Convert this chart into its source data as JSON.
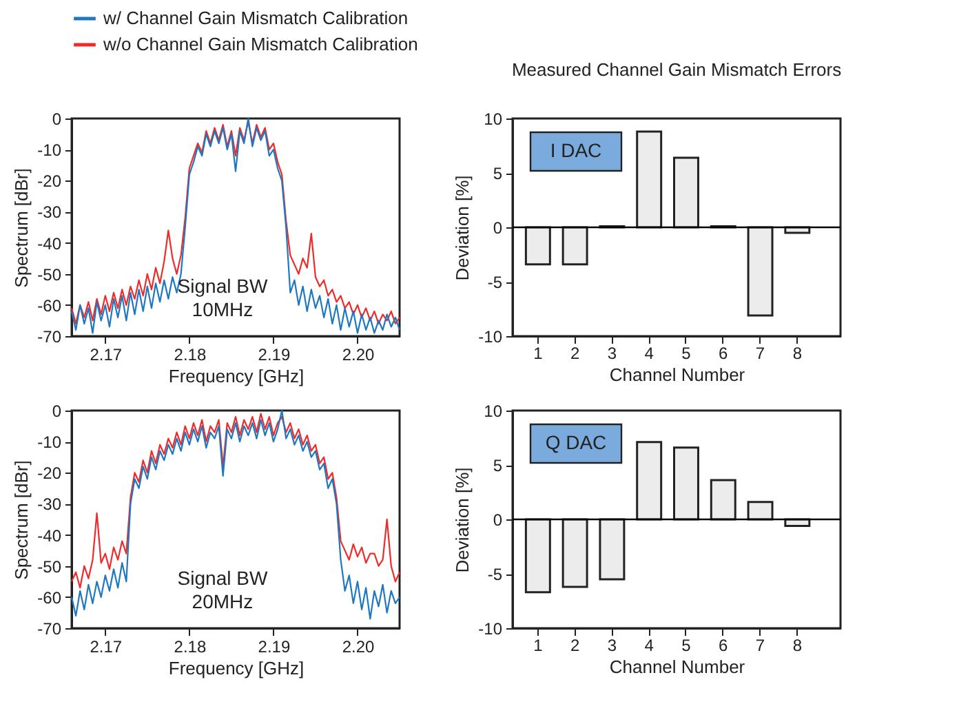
{
  "chart_data": [
    {
      "type": "line",
      "xlabel": "Frequency [GHz]",
      "ylabel": "Spectrum [dBr]",
      "xlim": [
        2.166,
        2.205
      ],
      "ylim": [
        -70,
        0
      ],
      "xticks": [
        2.17,
        2.18,
        2.19,
        {
          "value": 2.2,
          "label": "2.20"
        }
      ],
      "yticks": [
        -70,
        -60,
        -50,
        -40,
        -30,
        -20,
        -10,
        0
      ],
      "legend": "top",
      "annotations": [
        "Signal BW\n10MHz"
      ],
      "x": [
        2.166,
        2.1665,
        2.167,
        2.1675,
        2.168,
        2.1685,
        2.169,
        2.1695,
        2.17,
        2.1705,
        2.171,
        2.1715,
        2.172,
        2.1725,
        2.173,
        2.1735,
        2.174,
        2.1745,
        2.175,
        2.1755,
        2.176,
        2.1765,
        2.177,
        2.1775,
        2.178,
        2.1785,
        2.179,
        2.1795,
        2.18,
        2.1805,
        2.181,
        2.1815,
        2.182,
        2.1825,
        2.183,
        2.1835,
        2.184,
        2.1845,
        2.185,
        2.1855,
        2.186,
        2.1865,
        2.187,
        2.1875,
        2.188,
        2.1885,
        2.189,
        2.1895,
        2.19,
        2.1905,
        2.191,
        2.1915,
        2.192,
        2.1925,
        2.193,
        2.1935,
        2.194,
        2.1945,
        2.195,
        2.1955,
        2.196,
        2.1965,
        2.197,
        2.1975,
        2.198,
        2.1985,
        2.199,
        2.1995,
        2.2,
        2.2005,
        2.201,
        2.2015,
        2.202,
        2.2025,
        2.203,
        2.2035,
        2.204,
        2.2045,
        2.205
      ],
      "series": [
        {
          "name": "w/ Channel Gain Mismatch Calibration",
          "color": "#1f77c0",
          "values": [
            -62,
            -68,
            -60,
            -66,
            -61,
            -69,
            -59,
            -65,
            -60,
            -67,
            -58,
            -64,
            -57,
            -65,
            -56,
            -63,
            -55,
            -62,
            -54,
            -61,
            -53,
            -59,
            -52,
            -58,
            -51,
            -56,
            -50,
            -35,
            -18,
            -14,
            -9,
            -12,
            -5,
            -9,
            -4,
            -8,
            -3,
            -10,
            -5,
            -17,
            -4,
            -8,
            0,
            -9,
            -3,
            -7,
            -4,
            -12,
            -10,
            -16,
            -20,
            -35,
            -56,
            -52,
            -60,
            -54,
            -62,
            -55,
            -61,
            -57,
            -64,
            -58,
            -66,
            -60,
            -68,
            -61,
            -67,
            -62,
            -69,
            -63,
            -68,
            -64,
            -69,
            -65,
            -68,
            -63,
            -67,
            -64,
            -68
          ]
        },
        {
          "name": "w/o Channel Gain Mismatch Calibration",
          "color": "#ee2a2a",
          "values": [
            -61,
            -66,
            -60,
            -64,
            -59,
            -65,
            -58,
            -63,
            -57,
            -62,
            -56,
            -61,
            -55,
            -60,
            -54,
            -58,
            -52,
            -57,
            -50,
            -55,
            -48,
            -53,
            -46,
            -36,
            -45,
            -50,
            -44,
            -32,
            -16,
            -12,
            -8,
            -11,
            -4,
            -8,
            -3,
            -7,
            -2,
            -9,
            -4,
            -12,
            -3,
            -7,
            -1,
            -8,
            -2,
            -6,
            -3,
            -10,
            -8,
            -14,
            -18,
            -33,
            -44,
            -47,
            -50,
            -45,
            -48,
            -37,
            -51,
            -54,
            -52,
            -57,
            -55,
            -59,
            -57,
            -61,
            -59,
            -63,
            -60,
            -64,
            -61,
            -65,
            -62,
            -66,
            -63,
            -65,
            -62,
            -66,
            -64
          ]
        }
      ]
    },
    {
      "type": "bar",
      "title": "Measured Channel Gain Mismatch Errors",
      "xlabel": "Channel Number",
      "ylabel": "Deviation [%]",
      "categories": [
        "1",
        "2",
        "3",
        "4",
        "5",
        "6",
        "7",
        "8"
      ],
      "ylim": [
        -10,
        10
      ],
      "yticks": [
        -10,
        -5,
        0,
        5,
        10
      ],
      "annotations": [
        "I DAC"
      ],
      "ref_lines": [
        {
          "axis": "y",
          "value": 0,
          "color": "#000000"
        }
      ],
      "series": [
        {
          "color": "#ececec",
          "values": [
            -3.4,
            -3.4,
            0.1,
            8.8,
            6.4,
            0.1,
            -8.1,
            -0.5
          ]
        }
      ]
    },
    {
      "type": "line",
      "xlabel": "Frequency [GHz]",
      "ylabel": "Spectrum [dBr]",
      "xlim": [
        2.166,
        2.205
      ],
      "ylim": [
        -70,
        0
      ],
      "xticks": [
        2.17,
        2.18,
        2.19,
        {
          "value": 2.2,
          "label": "2.20"
        }
      ],
      "yticks": [
        -70,
        -60,
        -50,
        -40,
        -30,
        -20,
        -10,
        0
      ],
      "annotations": [
        "Signal BW\n20MHz"
      ],
      "x": [
        2.166,
        2.1665,
        2.167,
        2.1675,
        2.168,
        2.1685,
        2.169,
        2.1695,
        2.17,
        2.1705,
        2.171,
        2.1715,
        2.172,
        2.1725,
        2.173,
        2.1735,
        2.174,
        2.1745,
        2.175,
        2.1755,
        2.176,
        2.1765,
        2.177,
        2.1775,
        2.178,
        2.1785,
        2.179,
        2.1795,
        2.18,
        2.1805,
        2.181,
        2.1815,
        2.182,
        2.1825,
        2.183,
        2.1835,
        2.184,
        2.1845,
        2.185,
        2.1855,
        2.186,
        2.1865,
        2.187,
        2.1875,
        2.188,
        2.1885,
        2.189,
        2.1895,
        2.19,
        2.1905,
        2.191,
        2.1915,
        2.192,
        2.1925,
        2.193,
        2.1935,
        2.194,
        2.1945,
        2.195,
        2.1955,
        2.196,
        2.1965,
        2.197,
        2.1975,
        2.198,
        2.1985,
        2.199,
        2.1995,
        2.2,
        2.2005,
        2.201,
        2.2015,
        2.202,
        2.2025,
        2.203,
        2.2035,
        2.204,
        2.2045,
        2.205
      ],
      "series": [
        {
          "color": "#1f77c0",
          "values": [
            -60,
            -66,
            -58,
            -64,
            -56,
            -62,
            -55,
            -60,
            -53,
            -58,
            -51,
            -57,
            -49,
            -55,
            -30,
            -22,
            -25,
            -18,
            -22,
            -15,
            -19,
            -13,
            -16,
            -11,
            -14,
            -9,
            -13,
            -7,
            -11,
            -6,
            -10,
            -5,
            -12,
            -7,
            -9,
            -5,
            -21,
            -6,
            -9,
            -4,
            -10,
            -5,
            -8,
            -4,
            -9,
            -3,
            -8,
            -4,
            -10,
            -6,
            0,
            -9,
            -6,
            -11,
            -8,
            -13,
            -10,
            -15,
            -13,
            -19,
            -17,
            -25,
            -22,
            -30,
            -48,
            -58,
            -53,
            -62,
            -55,
            -64,
            -57,
            -67,
            -58,
            -63,
            -56,
            -65,
            -58,
            -62,
            -60
          ]
        },
        {
          "color": "#ee2a2a",
          "values": [
            -55,
            -52,
            -57,
            -50,
            -54,
            -48,
            -33,
            -49,
            -46,
            -51,
            -44,
            -48,
            -42,
            -46,
            -28,
            -20,
            -23,
            -16,
            -20,
            -13,
            -17,
            -11,
            -14,
            -9,
            -12,
            -7,
            -11,
            -5,
            -9,
            -4,
            -8,
            -3,
            -10,
            -5,
            -7,
            -3,
            -18,
            -4,
            -7,
            -2,
            -8,
            -3,
            -6,
            -2,
            -7,
            -1,
            -6,
            -2,
            -8,
            -4,
            -2,
            -7,
            -4,
            -9,
            -6,
            -11,
            -8,
            -13,
            -11,
            -17,
            -15,
            -22,
            -20,
            -28,
            -42,
            -45,
            -48,
            -43,
            -47,
            -44,
            -49,
            -46,
            -46,
            -50,
            -48,
            -35,
            -50,
            -55,
            -52
          ]
        }
      ]
    },
    {
      "type": "bar",
      "xlabel": "Channel Number",
      "ylabel": "Deviation [%]",
      "categories": [
        "1",
        "2",
        "3",
        "4",
        "5",
        "6",
        "7",
        "8"
      ],
      "ylim": [
        -10,
        10
      ],
      "yticks": [
        -10,
        -5,
        0,
        5,
        10
      ],
      "annotations": [
        "Q DAC"
      ],
      "ref_lines": [
        {
          "axis": "y",
          "value": 0,
          "color": "#000000"
        }
      ],
      "series": [
        {
          "color": "#ececec",
          "values": [
            -6.7,
            -6.2,
            -5.5,
            7.1,
            6.6,
            3.6,
            1.6,
            -0.6
          ]
        }
      ]
    }
  ]
}
